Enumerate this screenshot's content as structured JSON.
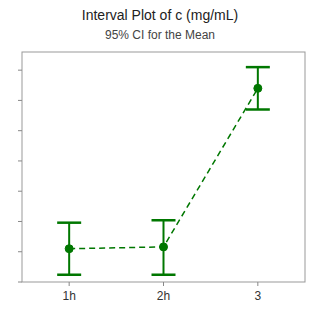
{
  "chart_data": {
    "type": "interval",
    "title": "Interval Plot of c (mg/mL)",
    "subtitle": "95% CI for the Mean",
    "categories": [
      "1h",
      "2h",
      "3"
    ],
    "values": [
      0.55,
      0.58,
      3.2
    ],
    "ci_lower": [
      0.12,
      0.12,
      2.85
    ],
    "ci_upper": [
      0.98,
      1.02,
      3.55
    ],
    "color": "#007700",
    "line_style": "dashed",
    "marker": "circle",
    "ylim": [
      0.0,
      3.8
    ],
    "yticks": [
      0.0,
      0.5,
      1.0,
      1.5,
      2.0,
      2.5,
      3.0,
      3.5
    ],
    "tick_labels": "x",
    "grid": false
  }
}
